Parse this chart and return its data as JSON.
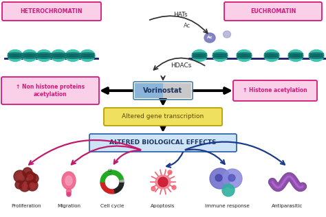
{
  "bg_color": "#ffffff",
  "heterochromatin_label": "HETEROCHROMATIN",
  "euchromatin_label": "EUCHROMATIN",
  "hats_label": "HATs",
  "ac_label": "Ac",
  "hdacs_label": "HDACs",
  "vorinostat_label": "Vorinostat",
  "non_histone_label": "↑ Non histone proteins\nacetylation",
  "histone_label": "↑ Histone acetylation",
  "altered_gene_label": "Altered gene transcription",
  "altered_bio_label": "ALTERED BIOLOGICAL EFFECTS",
  "bio_effects": [
    "Proliferation",
    "Migration",
    "Cell cycle",
    "Apoptosis",
    "Immune response",
    "Antiparasitic"
  ],
  "pink_label_color": "#d4187a",
  "pink_box_color": "#f9d0e8",
  "pink_box_edge": "#d4187a",
  "vorinostat_fill1": "#8ab4d8",
  "vorinostat_fill2": "#c8c8c8",
  "vorinostat_edge": "#5588aa",
  "gene_box_color": "#f0e060",
  "gene_box_edge": "#b8a000",
  "bio_box_color": "#cce4f5",
  "bio_box_edge": "#3366aa",
  "navy_color": "#1a1a6e",
  "arrow_pink": "#c0186a",
  "arrow_blue": "#1a3a8a",
  "histone_teal": "#3ec4b0",
  "histone_dark": "#005555",
  "dna_color": "#1a1a6e"
}
